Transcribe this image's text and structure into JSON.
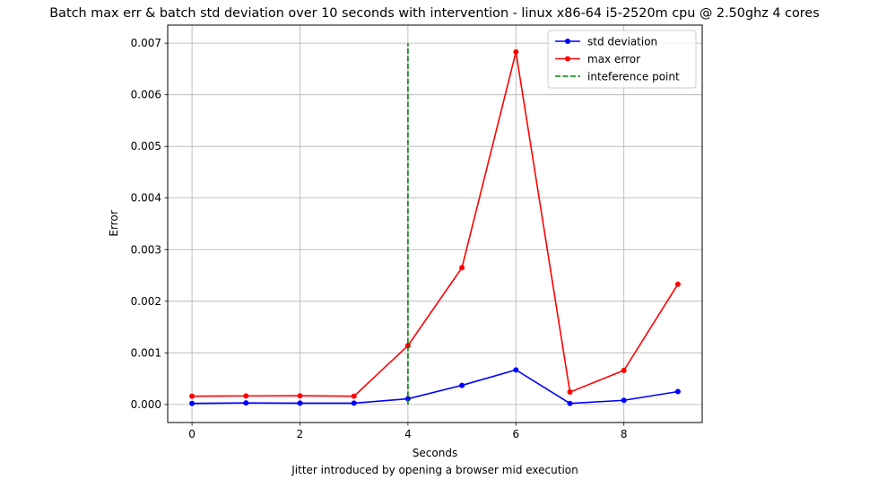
{
  "chart_data": {
    "type": "line",
    "title": "Batch max err & batch std deviation over 10 seconds with intervention - linux x86-64 i5-2520m cpu @ 2.50ghz 4 cores",
    "xlabel": "Seconds",
    "ylabel": "Error",
    "caption": "Jitter introduced by opening a browser mid execution",
    "xlim": [
      -0.45,
      9.45
    ],
    "ylim": [
      -0.00035,
      0.00735
    ],
    "x_ticks": [
      0,
      2,
      4,
      6,
      8
    ],
    "x_tick_labels": [
      "0",
      "2",
      "4",
      "6",
      "8"
    ],
    "y_ticks": [
      0,
      0.001,
      0.002,
      0.003,
      0.004,
      0.005,
      0.006,
      0.007
    ],
    "y_tick_labels": [
      "0.000",
      "0.001",
      "0.002",
      "0.003",
      "0.004",
      "0.005",
      "0.006",
      "0.007"
    ],
    "grid": true,
    "legend_position": "top-right",
    "x": [
      0,
      1,
      2,
      3,
      4,
      5,
      6,
      7,
      8,
      9
    ],
    "series": [
      {
        "name": "std deviation",
        "color": "#0000ff",
        "style": "solid-marker",
        "values": [
          2e-05,
          3e-05,
          2.5e-05,
          2.5e-05,
          0.00011,
          0.00037,
          0.00067,
          2e-05,
          8e-05,
          0.00025
        ]
      },
      {
        "name": "max error",
        "color": "#ff0000",
        "style": "solid-marker",
        "values": [
          0.00016,
          0.000165,
          0.000168,
          0.00016,
          0.00114,
          0.00265,
          0.00683,
          0.00024,
          0.00066,
          0.00233
        ]
      },
      {
        "name": "inteference point",
        "color": "#008000",
        "style": "dashed",
        "x": [
          4,
          4
        ],
        "values": [
          0,
          0.007
        ]
      }
    ]
  }
}
